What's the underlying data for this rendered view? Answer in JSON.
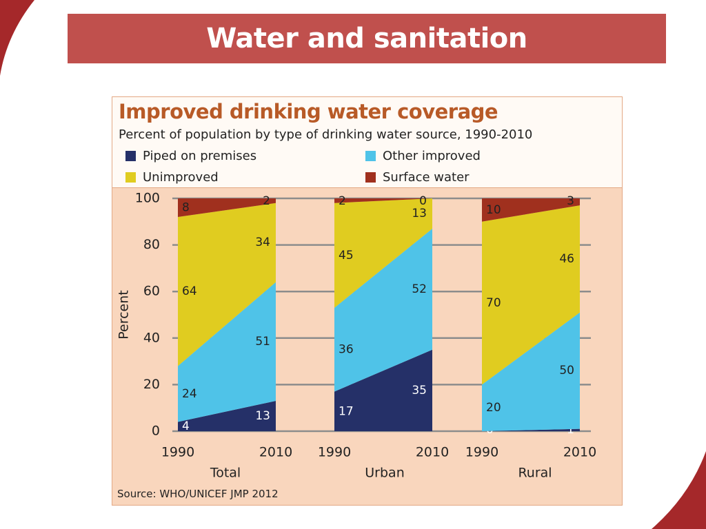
{
  "slide": {
    "title": "Water and sanitation",
    "accent_color": "#c0504d"
  },
  "chart_data": {
    "type": "area",
    "title": "Improved drinking water coverage",
    "subtitle": "Percent of population by type of drinking water source, 1990-2010",
    "ylabel": "Percent",
    "ylim": [
      0,
      100
    ],
    "yticks": [
      0,
      20,
      40,
      60,
      80,
      100
    ],
    "grid": true,
    "legend_placement": "top",
    "source": "Source:  WHO/UNICEF JMP 2012",
    "series": [
      {
        "name": "Piped on premises",
        "color": "#253068"
      },
      {
        "name": "Other improved",
        "color": "#4fc3e8"
      },
      {
        "name": "Unimproved",
        "color": "#e0cc20"
      },
      {
        "name": "Surface water",
        "color": "#a0301e"
      }
    ],
    "panels": [
      {
        "name": "Total",
        "x": [
          "1990",
          "2010"
        ],
        "values": {
          "Piped on premises": [
            4,
            13
          ],
          "Other improved": [
            24,
            51
          ],
          "Unimproved": [
            64,
            34
          ],
          "Surface water": [
            8,
            2
          ]
        }
      },
      {
        "name": "Urban",
        "x": [
          "1990",
          "2010"
        ],
        "values": {
          "Piped on premises": [
            17,
            35
          ],
          "Other improved": [
            36,
            52
          ],
          "Unimproved": [
            45,
            13
          ],
          "Surface water": [
            2,
            0
          ]
        }
      },
      {
        "name": "Rural",
        "x": [
          "1990",
          "2010"
        ],
        "values": {
          "Piped on premises": [
            0,
            1
          ],
          "Other improved": [
            20,
            50
          ],
          "Unimproved": [
            70,
            46
          ],
          "Surface water": [
            10,
            3
          ]
        }
      }
    ]
  }
}
